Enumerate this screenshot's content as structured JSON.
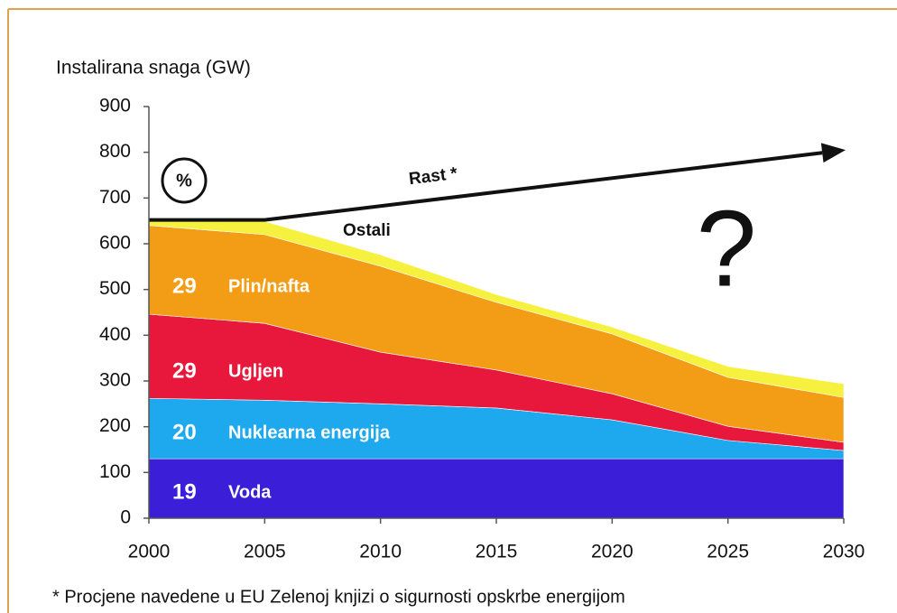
{
  "chart_data": {
    "type": "stacked_area",
    "y_label": "Instalirana snaga (GW)",
    "x": [
      2000,
      2005,
      2010,
      2015,
      2020,
      2025,
      2030
    ],
    "series": [
      {
        "name": "Voda",
        "share": 19,
        "color": "#3b1fd8",
        "values": [
          130,
          130,
          130,
          130,
          130,
          130,
          130
        ]
      },
      {
        "name": "Nuklearna energija",
        "share": 20,
        "color": "#1ea9ef",
        "values": [
          132,
          128,
          120,
          111,
          85,
          40,
          18
        ]
      },
      {
        "name": "Ugljen",
        "share": 29,
        "color": "#e8183c",
        "values": [
          184,
          168,
          113,
          83,
          57,
          31,
          18
        ]
      },
      {
        "name": "Plin/nafta",
        "share": 29,
        "color": "#f39c16",
        "values": [
          194,
          194,
          188,
          148,
          131,
          107,
          98
        ]
      },
      {
        "name": "Ostali",
        "color": "#f6f03e",
        "values": [
          13,
          29,
          25,
          17,
          15,
          24,
          30
        ]
      }
    ],
    "growth_line": {
      "name": "Rast *",
      "x": [
        2000,
        2005,
        2030
      ],
      "values": [
        652,
        652,
        805
      ]
    },
    "share_unit": "%",
    "annotation": "?",
    "footnote": "* Procjene navedene u EU Zelenoj knjizi o sigurnosti opskrbe energijom",
    "xlim": [
      2000,
      2030
    ],
    "xticks": [
      2000,
      2005,
      2010,
      2015,
      2020,
      2025,
      2030
    ],
    "ylim": [
      0,
      900
    ],
    "yticks": [
      0,
      100,
      200,
      300,
      400,
      500,
      600,
      700,
      800,
      900
    ],
    "grid": false
  }
}
